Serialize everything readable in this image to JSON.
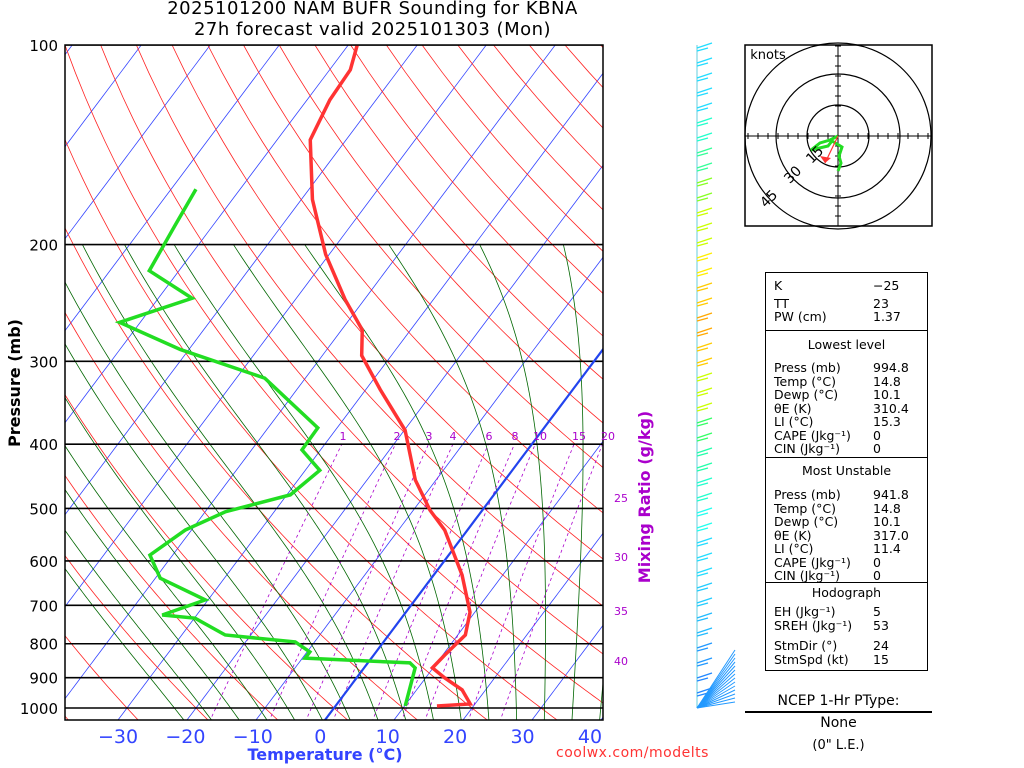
{
  "title": {
    "line1": "2025101200 NAM BUFR Sounding for KBNA",
    "line2": "27h forecast valid 2025101303 (Mon)"
  },
  "credit": "coolwx.com/modelts",
  "colors": {
    "temperature": "#ff3333",
    "dewpoint": "#22dd22",
    "isotherm": "#3344ff",
    "dry_adiabat": "#ff2222",
    "moist_adiabat": "#006600",
    "mixing_ratio": "#aa00cc",
    "freezing": "#2244ee"
  },
  "chart_data": {
    "type": "line",
    "title": "2025101200 NAM BUFR Sounding for KBNA",
    "xlabel": "Temperature (°C)",
    "ylabel": "Pressure (mb)",
    "y2label": "Mixing Ratio (g/kg)",
    "x_ticks": [
      -30,
      -20,
      -10,
      0,
      10,
      20,
      30,
      40
    ],
    "y_ticks": [
      100,
      200,
      300,
      400,
      500,
      600,
      700,
      800,
      900,
      1000
    ],
    "ylim": [
      1050,
      100
    ],
    "mixing_ratio_labels": [
      "1",
      "2",
      "3",
      "4",
      "6",
      "8",
      "10",
      "15",
      "20"
    ],
    "theta_e_labels": [
      "25",
      "30",
      "35",
      "40"
    ],
    "series": [
      {
        "name": "Temperature",
        "points": [
          [
            993,
            14.7
          ],
          [
            986,
            19.3
          ],
          [
            939,
            16.6
          ],
          [
            901,
            12.8
          ],
          [
            870,
            9.9
          ],
          [
            832,
            10.3
          ],
          [
            776,
            11.1
          ],
          [
            717,
            9.3
          ],
          [
            630,
            4.1
          ],
          [
            539,
            -3.3
          ],
          [
            503,
            -7.6
          ],
          [
            453,
            -13.0
          ],
          [
            381,
            -19.9
          ],
          [
            331,
            -27.9
          ],
          [
            294,
            -34.3
          ],
          [
            269,
            -37.0
          ],
          [
            242,
            -42.8
          ],
          [
            207,
            -50.5
          ],
          [
            171,
            -58.4
          ],
          [
            139,
            -65.2
          ],
          [
            121,
            -66.7
          ],
          [
            109,
            -67.0
          ],
          [
            100,
            -68.7
          ]
        ]
      },
      {
        "name": "Dewpoint",
        "points": [
          [
            993,
            10.1
          ],
          [
            870,
            7.4
          ],
          [
            855,
            6.1
          ],
          [
            841,
            -9.6
          ],
          [
            823,
            -9.6
          ],
          [
            795,
            -12.8
          ],
          [
            776,
            -23.7
          ],
          [
            732,
            -29.9
          ],
          [
            724,
            -35.0
          ],
          [
            687,
            -30.4
          ],
          [
            637,
            -39.3
          ],
          [
            588,
            -43.3
          ],
          [
            539,
            -40.9
          ],
          [
            506,
            -37.1
          ],
          [
            477,
            -29.5
          ],
          [
            438,
            -27.9
          ],
          [
            408,
            -32.7
          ],
          [
            378,
            -32.8
          ],
          [
            318,
            -45.9
          ],
          [
            288,
            -61.2
          ],
          [
            262,
            -73.0
          ],
          [
            241,
            -65.1
          ],
          [
            219,
            -74.3
          ],
          [
            187,
            -75.5
          ],
          [
            165,
            -76.4
          ]
        ]
      }
    ]
  },
  "hodograph": {
    "units": "knots",
    "rings": [
      "15",
      "30",
      "45"
    ],
    "storm_dir": 24,
    "storm_spd": 15
  },
  "stats": {
    "indices": [
      {
        "label": "K",
        "value": "−25"
      },
      {
        "label": "TT",
        "value": "23"
      },
      {
        "label": "PW (cm)",
        "value": "1.37"
      }
    ],
    "lowest_title": "Lowest level",
    "lowest": [
      {
        "label": "Press (mb)",
        "value": "994.8"
      },
      {
        "label": "Temp (°C)",
        "value": "14.8"
      },
      {
        "label": "Dewp (°C)",
        "value": "10.1"
      },
      {
        "label": "θE (K)",
        "value": "310.4"
      },
      {
        "label": "LI (°C)",
        "value": "15.3"
      },
      {
        "label": "CAPE (Jkg⁻¹)",
        "value": "0"
      },
      {
        "label": "CIN (Jkg⁻¹)",
        "value": "0"
      }
    ],
    "mu_title": "Most Unstable",
    "mu": [
      {
        "label": "Press (mb)",
        "value": "941.8"
      },
      {
        "label": "Temp (°C)",
        "value": "14.8"
      },
      {
        "label": "Dewp (°C)",
        "value": "10.1"
      },
      {
        "label": "θE (K)",
        "value": "317.0"
      },
      {
        "label": "LI (°C)",
        "value": "11.4"
      },
      {
        "label": "CAPE (Jkg⁻¹)",
        "value": "0"
      },
      {
        "label": "CIN (Jkg⁻¹)",
        "value": "0"
      }
    ],
    "hodo_title": "Hodograph",
    "hodo": [
      {
        "label": "EH (Jkg⁻¹)",
        "value": "5"
      },
      {
        "label": "SREH (Jkg⁻¹)",
        "value": "53"
      }
    ],
    "storm": [
      {
        "label": "StmDir (°)",
        "value": "24"
      },
      {
        "label": "StmSpd (kt)",
        "value": "15"
      }
    ]
  },
  "ptype": {
    "title": "NCEP 1-Hr PType:",
    "value": "None",
    "le": "(0\" L.E.)"
  }
}
